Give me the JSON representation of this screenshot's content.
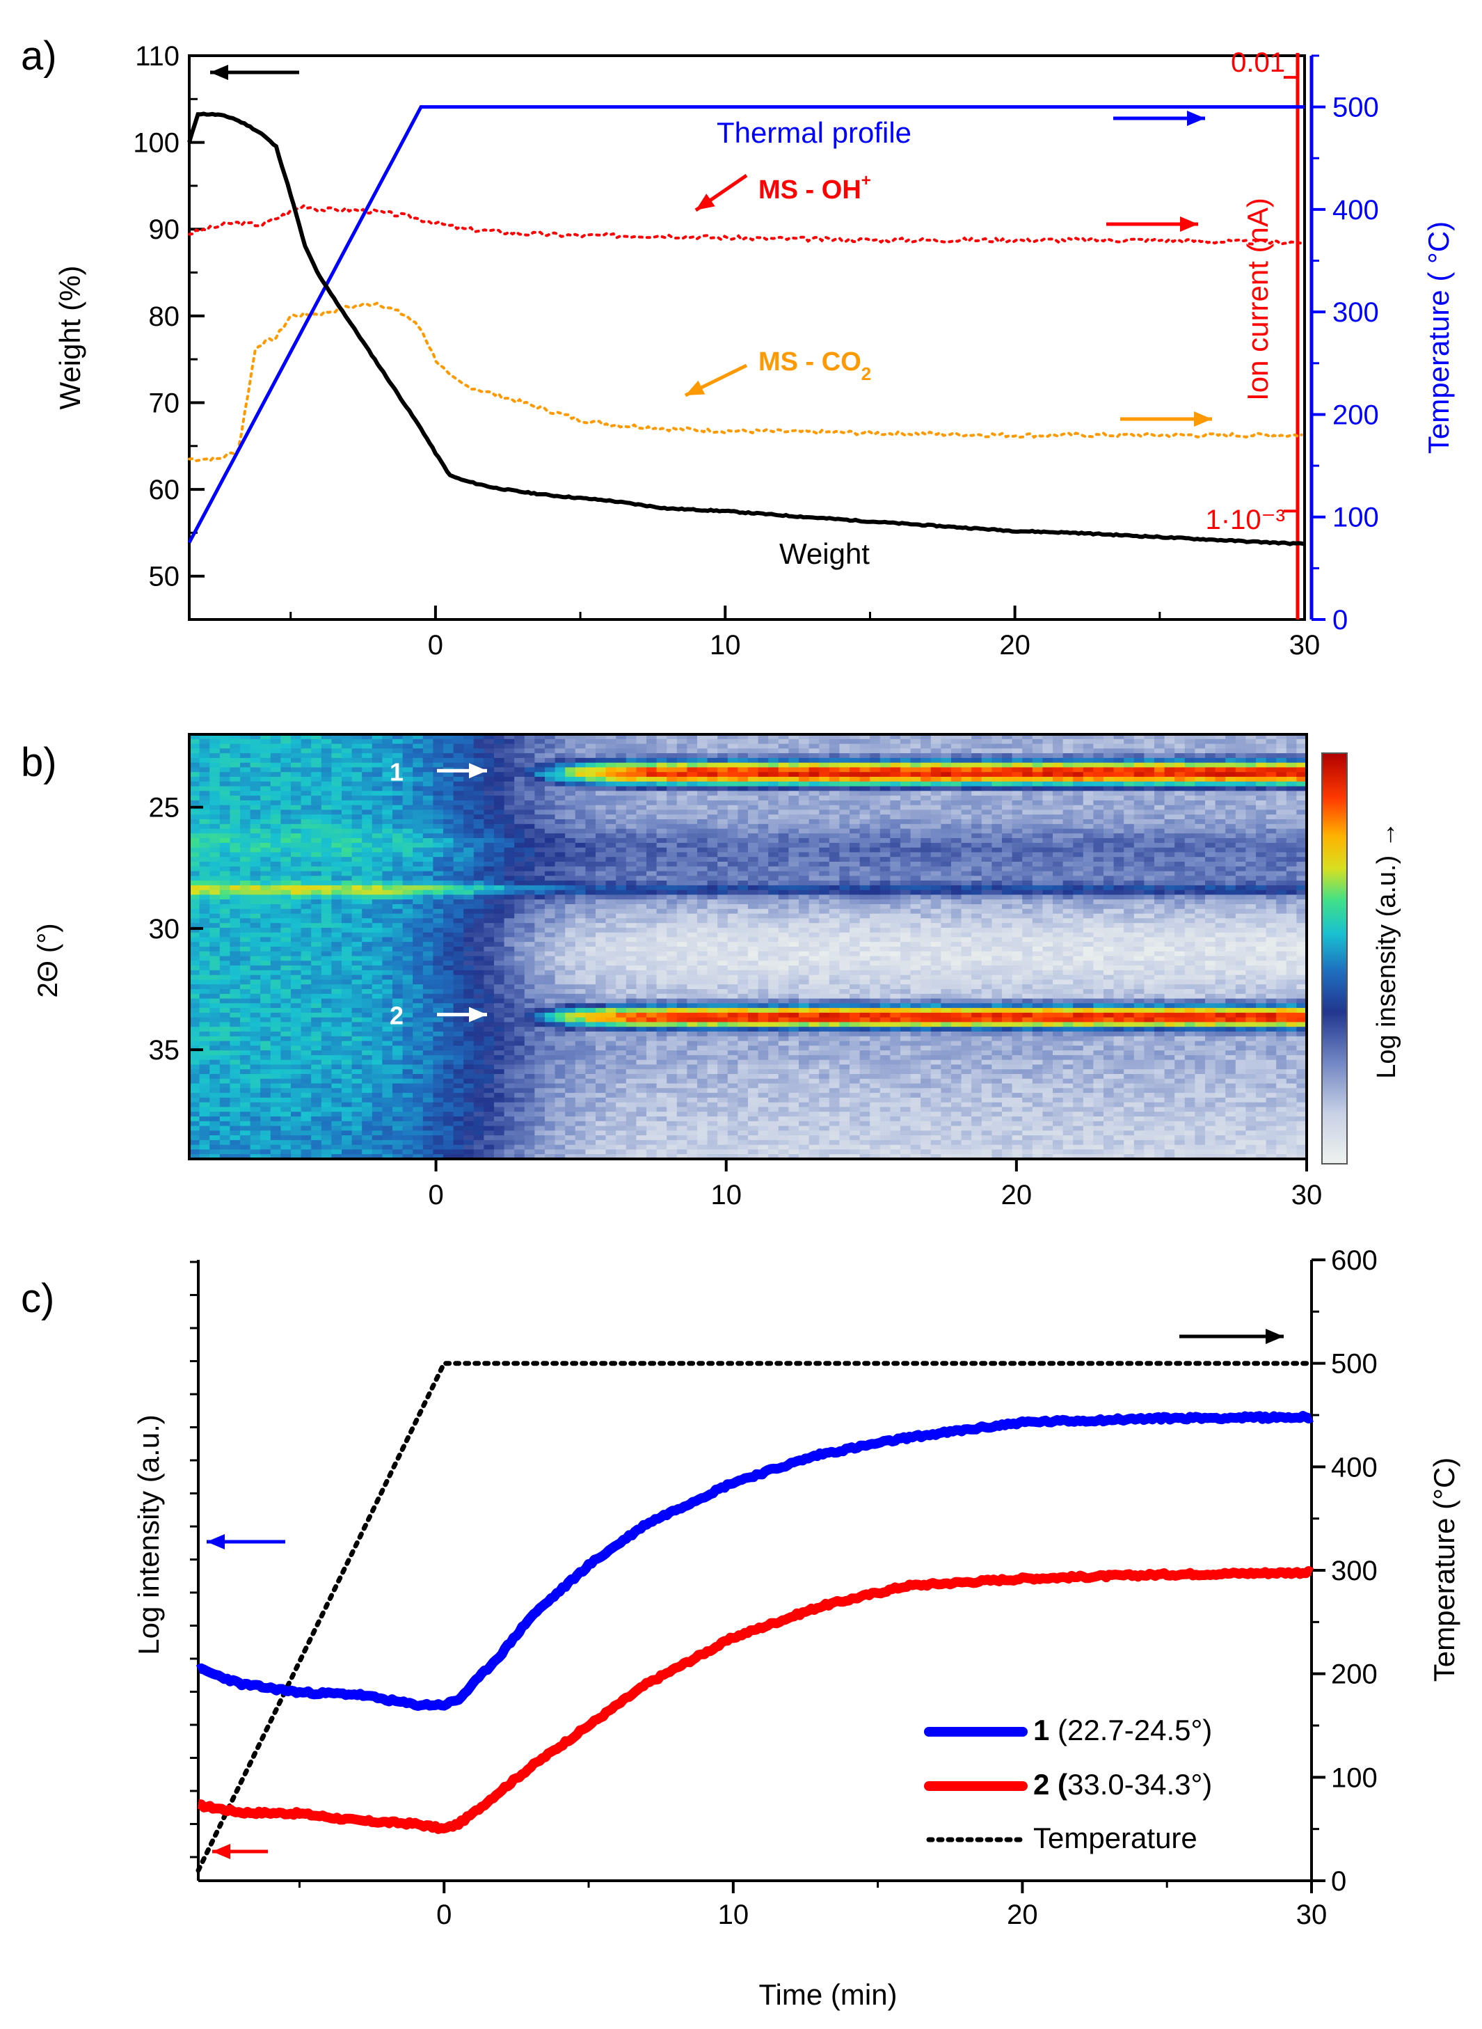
{
  "chart_data": [
    {
      "panel": "a)",
      "type": "line",
      "title": "",
      "xlabel": "",
      "xlim": [
        -8.5,
        30
      ],
      "xticks": [
        0,
        10,
        20,
        30
      ],
      "y_left": {
        "label": "Weight (%)",
        "lim": [
          45,
          110
        ],
        "ticks": [
          50,
          60,
          70,
          80,
          90,
          100,
          110
        ]
      },
      "y_right_ion": {
        "label": "Ion current (nA)",
        "top_label": "0.01",
        "bottom_label": "1·10⁻³",
        "lim_log": [
          -3.25,
          -1.95
        ]
      },
      "y_right_temp": {
        "label": "Temperature ( °C)",
        "lim": [
          0,
          550
        ],
        "ticks": [
          0,
          100,
          200,
          300,
          400,
          500
        ]
      },
      "series": [
        {
          "name": "Weight",
          "label": "Weight",
          "axis": "left",
          "color": "#000000",
          "style": "solid",
          "x": [
            -8.5,
            -8.2,
            -7.5,
            -7,
            -6.5,
            -6,
            -5.5,
            -5,
            -4.5,
            -4,
            -3.5,
            -3,
            -2.5,
            -2,
            -1.5,
            -1,
            -0.5,
            0,
            0.5,
            1,
            2,
            3,
            4,
            5,
            6,
            8,
            10,
            12,
            15,
            20,
            22,
            25,
            28,
            30
          ],
          "y": [
            100,
            103.3,
            103.2,
            102.8,
            102,
            101,
            99.5,
            94,
            88,
            84.5,
            82,
            79.5,
            77,
            74.5,
            72,
            69.5,
            67,
            64.2,
            61.6,
            61,
            60.2,
            59.7,
            59.3,
            59,
            58.7,
            57.8,
            57.5,
            57,
            56.3,
            55.2,
            55,
            54.5,
            54,
            53.7
          ]
        },
        {
          "name": "Thermal profile",
          "label": "Thermal profile",
          "axis": "temp",
          "color": "#0000ff",
          "style": "solid",
          "x": [
            -8.5,
            -0.5,
            30
          ],
          "y": [
            75,
            500,
            500
          ]
        },
        {
          "name": "MS - OH+",
          "label_main": "MS - OH",
          "label_sup": "+",
          "axis": "ion",
          "color": "#ff0000",
          "style": "dotted",
          "x": [
            -8.5,
            -7,
            -6,
            -5,
            -4.5,
            -4,
            -3,
            -2,
            -1,
            0,
            1,
            3,
            5,
            8,
            10,
            15,
            20,
            25,
            28,
            30
          ],
          "logy": [
            -2.36,
            -2.335,
            -2.34,
            -2.31,
            -2.295,
            -2.305,
            -2.305,
            -2.31,
            -2.32,
            -2.335,
            -2.35,
            -2.36,
            -2.365,
            -2.365,
            -2.37,
            -2.375,
            -2.375,
            -2.375,
            -2.38,
            -2.38
          ]
        },
        {
          "name": "MS - CO2",
          "label_main": "MS - CO",
          "label_sub": "2",
          "axis": "ion",
          "color": "#ff9900",
          "style": "dotted",
          "x": [
            -8.5,
            -7.5,
            -6.8,
            -6.2,
            -5.5,
            -5,
            -4,
            -3,
            -2,
            -1,
            -0.5,
            0,
            0.5,
            1,
            2,
            3,
            4,
            5,
            6,
            8,
            10,
            15,
            20,
            25,
            28,
            30
          ],
          "logy": [
            -2.88,
            -2.88,
            -2.86,
            -2.62,
            -2.6,
            -2.55,
            -2.545,
            -2.53,
            -2.52,
            -2.55,
            -2.58,
            -2.65,
            -2.69,
            -2.71,
            -2.73,
            -2.75,
            -2.77,
            -2.79,
            -2.8,
            -2.81,
            -2.815,
            -2.82,
            -2.825,
            -2.825,
            -2.825,
            -2.825
          ]
        }
      ],
      "annotations": [
        "Weight",
        "Thermal profile",
        "MS - OH+",
        "MS - CO2"
      ]
    },
    {
      "panel": "b)",
      "type": "heatmap",
      "xlabel": "",
      "ylabel": "2Θ (°)",
      "xlim": [
        -8.5,
        30
      ],
      "ylim": [
        22,
        39.5
      ],
      "xticks": [
        0,
        10,
        20,
        30
      ],
      "yticks": [
        25,
        30,
        35
      ],
      "colorbar_label": "Log insensity (a.u.) →",
      "peaks": [
        {
          "label": "1",
          "center": 23.6,
          "width": 1.0,
          "onset": 2
        },
        {
          "label": "2",
          "center": 33.65,
          "width": 0.9,
          "onset": 2
        }
      ]
    },
    {
      "panel": "c)",
      "type": "line",
      "xlabel": "Time (min)",
      "xlim": [
        -8.5,
        30
      ],
      "xticks": [
        0,
        10,
        20,
        30
      ],
      "y_left": {
        "label": "Log intensity (a.u.)"
      },
      "y_right": {
        "label": "Temperature (°C)",
        "lim": [
          0,
          600
        ],
        "ticks": [
          0,
          100,
          200,
          300,
          400,
          500,
          600
        ]
      },
      "series": [
        {
          "name": "1 (22.7-24.5°)",
          "legend_bold": "1",
          "legend_rest": " (22.7-24.5°)",
          "color": "#0000ff",
          "style": "solid",
          "x": [
            -8.5,
            -7,
            -5,
            -3,
            -1,
            0,
            0.5,
            1,
            2,
            3,
            5,
            7,
            10,
            13,
            16,
            20,
            25,
            30
          ],
          "y": [
            205,
            190,
            182,
            180,
            170,
            170,
            175,
            190,
            220,
            255,
            305,
            345,
            385,
            412,
            428,
            443,
            447,
            448
          ]
        },
        {
          "name": "2 (33.0-34.3°)",
          "legend_bold": "2 (",
          "legend_rest": "33.0-34.3°)",
          "color": "#ff0000",
          "style": "solid",
          "x": [
            -8.5,
            -7,
            -5,
            -3,
            -1,
            0,
            0.5,
            1,
            2,
            3,
            5,
            7,
            10,
            13,
            16,
            20,
            25,
            30
          ],
          "y": [
            73,
            66,
            65,
            58,
            55,
            50,
            55,
            65,
            88,
            110,
            150,
            190,
            235,
            265,
            285,
            292,
            296,
            298
          ]
        },
        {
          "name": "Temperature",
          "legend_bold": "",
          "legend_rest": "Temperature",
          "color": "#000000",
          "style": "dotted",
          "x": [
            -8.5,
            0,
            30
          ],
          "y": [
            10,
            500,
            500
          ]
        }
      ]
    }
  ]
}
